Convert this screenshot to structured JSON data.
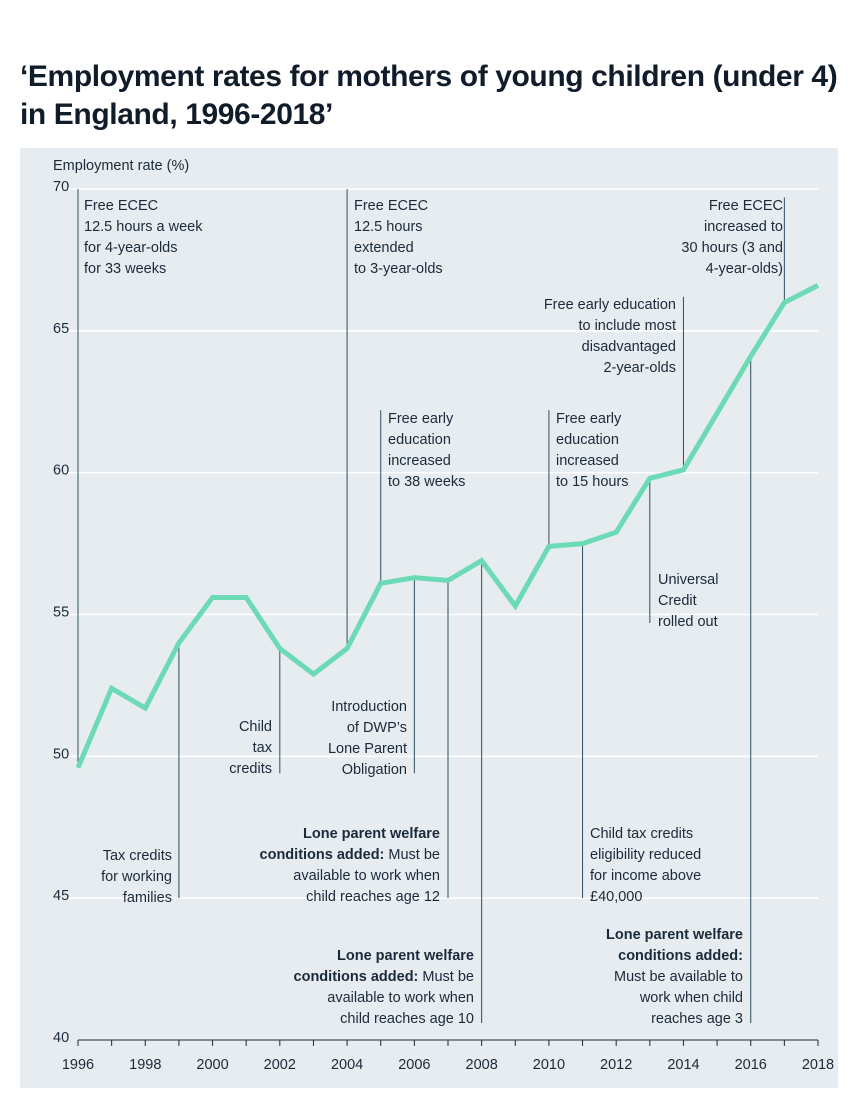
{
  "chart_data": {
    "type": "line",
    "title": "‘Employment rates for mothers of young children (under 4) in England, 1996-2018’",
    "ylabel": "Employment rate (%)",
    "xlabel": "",
    "xlim": [
      1996,
      2018
    ],
    "ylim": [
      40,
      70
    ],
    "yticks": [
      40,
      45,
      50,
      55,
      60,
      65,
      70
    ],
    "xticks": [
      1996,
      1998,
      2000,
      2002,
      2004,
      2006,
      2008,
      2010,
      2012,
      2014,
      2016,
      2018
    ],
    "grid": "horizontal",
    "line_color": "#6ddab6",
    "series": [
      {
        "x": [
          1996,
          1997,
          1998,
          1999,
          2000,
          2001,
          2002,
          2003,
          2004,
          2005,
          2006,
          2007,
          2008,
          2009,
          2010,
          2011,
          2012,
          2013,
          2014,
          2015,
          2016,
          2017,
          2018
        ],
        "values": [
          49.6,
          52.4,
          51.7,
          54.0,
          55.6,
          55.6,
          53.8,
          52.9,
          53.8,
          56.1,
          56.3,
          56.2,
          56.9,
          55.3,
          57.4,
          57.5,
          57.9,
          59.8,
          60.1,
          62.1,
          64.1,
          66.0,
          66.6
        ]
      }
    ],
    "annotations": [
      {
        "id": "a1996",
        "x": 1996,
        "y_top": 70,
        "y_bottom": 49.6,
        "lines": [
          "Free ECEC",
          "12.5 hours a week",
          "for 4-year-olds",
          "for 33 weeks"
        ]
      },
      {
        "id": "a1999",
        "x": 1999,
        "y_top": 54.0,
        "y_bottom": 45,
        "lines": [
          "Tax credits",
          "for working",
          "families"
        ]
      },
      {
        "id": "a2002",
        "x": 2002,
        "y_top": 53.8,
        "y_bottom": 49.4,
        "lines": [
          "Child",
          "tax",
          "credits"
        ]
      },
      {
        "id": "a2004",
        "x": 2004,
        "y_top": 70,
        "y_bottom": 53.8,
        "lines": [
          "Free ECEC",
          "12.5 hours",
          "extended",
          "to 3-year-olds"
        ]
      },
      {
        "id": "a2005",
        "x": 2005,
        "y_top": 62.2,
        "y_bottom": 56.1,
        "lines": [
          "Free early",
          "education",
          "increased",
          "to 38 weeks"
        ]
      },
      {
        "id": "a2006",
        "x": 2006,
        "y_top": 56.3,
        "y_bottom": 49.4,
        "lines": [
          "Introduction",
          "of DWP’s",
          "Lone Parent",
          "Obligation"
        ]
      },
      {
        "id": "a2007",
        "x": 2007,
        "y_top": 56.2,
        "y_bottom": 45,
        "bold": "Lone parent welfare conditions added:",
        "lines": [
          "Lone parent welfare",
          "conditions added: Must be",
          "available to work when",
          "child reaches age 12"
        ]
      },
      {
        "id": "a2008",
        "x": 2008,
        "y_top": 56.9,
        "y_bottom": 40.6,
        "bold": "Lone parent welfare conditions added:",
        "lines": [
          "Lone parent welfare",
          "conditions added: Must be",
          "available to work when",
          "child reaches age 10"
        ]
      },
      {
        "id": "a2010",
        "x": 2010,
        "y_top": 62.2,
        "y_bottom": 57.4,
        "lines": [
          "Free early",
          "education",
          "increased",
          "to 15 hours"
        ]
      },
      {
        "id": "a2011",
        "x": 2011,
        "y_top": 57.5,
        "y_bottom": 45,
        "lines": [
          "Child tax credits",
          "eligibility reduced",
          "for income above",
          "£40,000"
        ]
      },
      {
        "id": "a2013",
        "x": 2013,
        "y_top": 59.8,
        "y_bottom": 54.7,
        "lines": [
          "Universal",
          "Credit",
          "rolled out"
        ]
      },
      {
        "id": "a2014",
        "x": 2014,
        "y_top": 66.2,
        "y_bottom": 60.1,
        "lines": [
          "Free early education",
          "to include most",
          "disadvantaged",
          "2-year-olds"
        ]
      },
      {
        "id": "a2016",
        "x": 2016,
        "y_top": 64.1,
        "y_bottom": 40.6,
        "bold": "Lone parent welfare conditions added:",
        "lines": [
          "Lone parent welfare",
          "conditions added:",
          "Must be available to",
          "work when child",
          "reaches age 3"
        ]
      },
      {
        "id": "a2017",
        "x": 2017,
        "y_top": 69.7,
        "y_bottom": 66.0,
        "lines": [
          "Free ECEC",
          "increased to",
          "30 hours (3 and",
          "4-year-olds)"
        ]
      }
    ]
  }
}
